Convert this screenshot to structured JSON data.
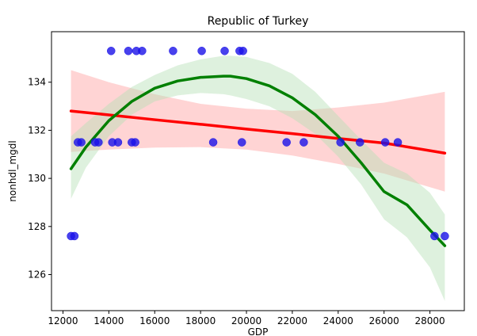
{
  "chart_data": {
    "type": "scatter",
    "title": "Republic of Turkey",
    "xlabel": "GDP",
    "ylabel": "nonhdl_mgdl",
    "xlim": [
      11500,
      29500
    ],
    "ylim": [
      124.5,
      136.1
    ],
    "x_ticks": [
      12000,
      14000,
      16000,
      18000,
      20000,
      22000,
      24000,
      26000,
      28000
    ],
    "y_ticks": [
      126,
      128,
      130,
      132,
      134
    ],
    "x_tick_labels": [
      "12000",
      "14000",
      "16000",
      "18000",
      "20000",
      "22000",
      "24000",
      "26000",
      "28000"
    ],
    "y_tick_labels": [
      "126",
      "128",
      "130",
      "132",
      "134"
    ],
    "points": [
      {
        "x": 12350,
        "y": 127.6
      },
      {
        "x": 12500,
        "y": 127.6
      },
      {
        "x": 12650,
        "y": 131.5
      },
      {
        "x": 12800,
        "y": 131.5
      },
      {
        "x": 13400,
        "y": 131.5
      },
      {
        "x": 13550,
        "y": 131.5
      },
      {
        "x": 14100,
        "y": 135.3
      },
      {
        "x": 14150,
        "y": 131.5
      },
      {
        "x": 14400,
        "y": 131.5
      },
      {
        "x": 14850,
        "y": 135.3
      },
      {
        "x": 15000,
        "y": 131.5
      },
      {
        "x": 15150,
        "y": 131.5
      },
      {
        "x": 15200,
        "y": 135.3
      },
      {
        "x": 15450,
        "y": 135.3
      },
      {
        "x": 16800,
        "y": 135.3
      },
      {
        "x": 18050,
        "y": 135.3
      },
      {
        "x": 18550,
        "y": 131.5
      },
      {
        "x": 19050,
        "y": 135.3
      },
      {
        "x": 19700,
        "y": 135.3
      },
      {
        "x": 19800,
        "y": 131.5
      },
      {
        "x": 19850,
        "y": 135.3
      },
      {
        "x": 21750,
        "y": 131.5
      },
      {
        "x": 22500,
        "y": 131.5
      },
      {
        "x": 24100,
        "y": 131.5
      },
      {
        "x": 24950,
        "y": 131.5
      },
      {
        "x": 26050,
        "y": 131.5
      },
      {
        "x": 26600,
        "y": 131.5
      },
      {
        "x": 28200,
        "y": 127.6
      },
      {
        "x": 28650,
        "y": 127.6
      }
    ],
    "series": [
      {
        "name": "linear fit",
        "color": "#ff0000",
        "band_color": "#ff9f9f",
        "x": [
          12350,
          14000,
          16000,
          18000,
          20000,
          22000,
          24000,
          26000,
          28650
        ],
        "y": [
          132.8,
          132.64,
          132.44,
          132.25,
          132.05,
          131.86,
          131.66,
          131.47,
          131.05
        ],
        "band_lower": [
          131.1,
          131.2,
          131.28,
          131.3,
          131.2,
          130.95,
          130.6,
          130.2,
          129.45
        ],
        "band_upper": [
          134.5,
          134.0,
          133.5,
          133.1,
          132.9,
          132.8,
          132.95,
          133.15,
          133.6
        ]
      },
      {
        "name": "quadratic fit",
        "color": "#008000",
        "band_color": "#b5dfb5",
        "x": [
          12350,
          13000,
          14000,
          15000,
          16000,
          17000,
          18000,
          19000,
          19300,
          20000,
          21000,
          22000,
          23000,
          24000,
          25000,
          26000,
          27000,
          28000,
          28650
        ],
        "y": [
          130.4,
          131.3,
          132.4,
          133.2,
          133.75,
          134.05,
          134.2,
          134.25,
          134.25,
          134.15,
          133.85,
          133.35,
          132.65,
          131.75,
          130.65,
          129.45,
          128.9,
          127.85,
          127.2
        ],
        "band_lower": [
          129.15,
          130.45,
          131.75,
          132.65,
          133.2,
          133.45,
          133.55,
          133.5,
          133.45,
          133.3,
          133.0,
          132.5,
          131.85,
          130.9,
          129.75,
          128.3,
          127.55,
          126.3,
          124.9
        ],
        "band_upper": [
          131.75,
          132.3,
          133.1,
          133.8,
          134.3,
          134.7,
          134.95,
          135.1,
          135.1,
          135.05,
          134.8,
          134.35,
          133.6,
          132.6,
          131.6,
          130.65,
          130.2,
          129.4,
          128.5
        ]
      }
    ],
    "point_color": "#1a12e8",
    "grid": false
  }
}
